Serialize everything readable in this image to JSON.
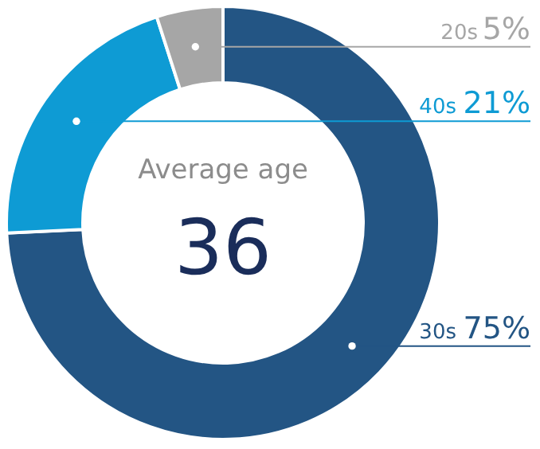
{
  "chart_data": {
    "type": "donut",
    "categories": [
      "30s",
      "40s",
      "20s"
    ],
    "values": [
      75,
      21,
      5
    ],
    "value_labels": [
      "75%",
      "21%",
      "5%"
    ],
    "colors": [
      "#235584",
      "#0e9bd4",
      "#a6a6a6"
    ],
    "annotations": [
      "Average age",
      "36"
    ]
  }
}
